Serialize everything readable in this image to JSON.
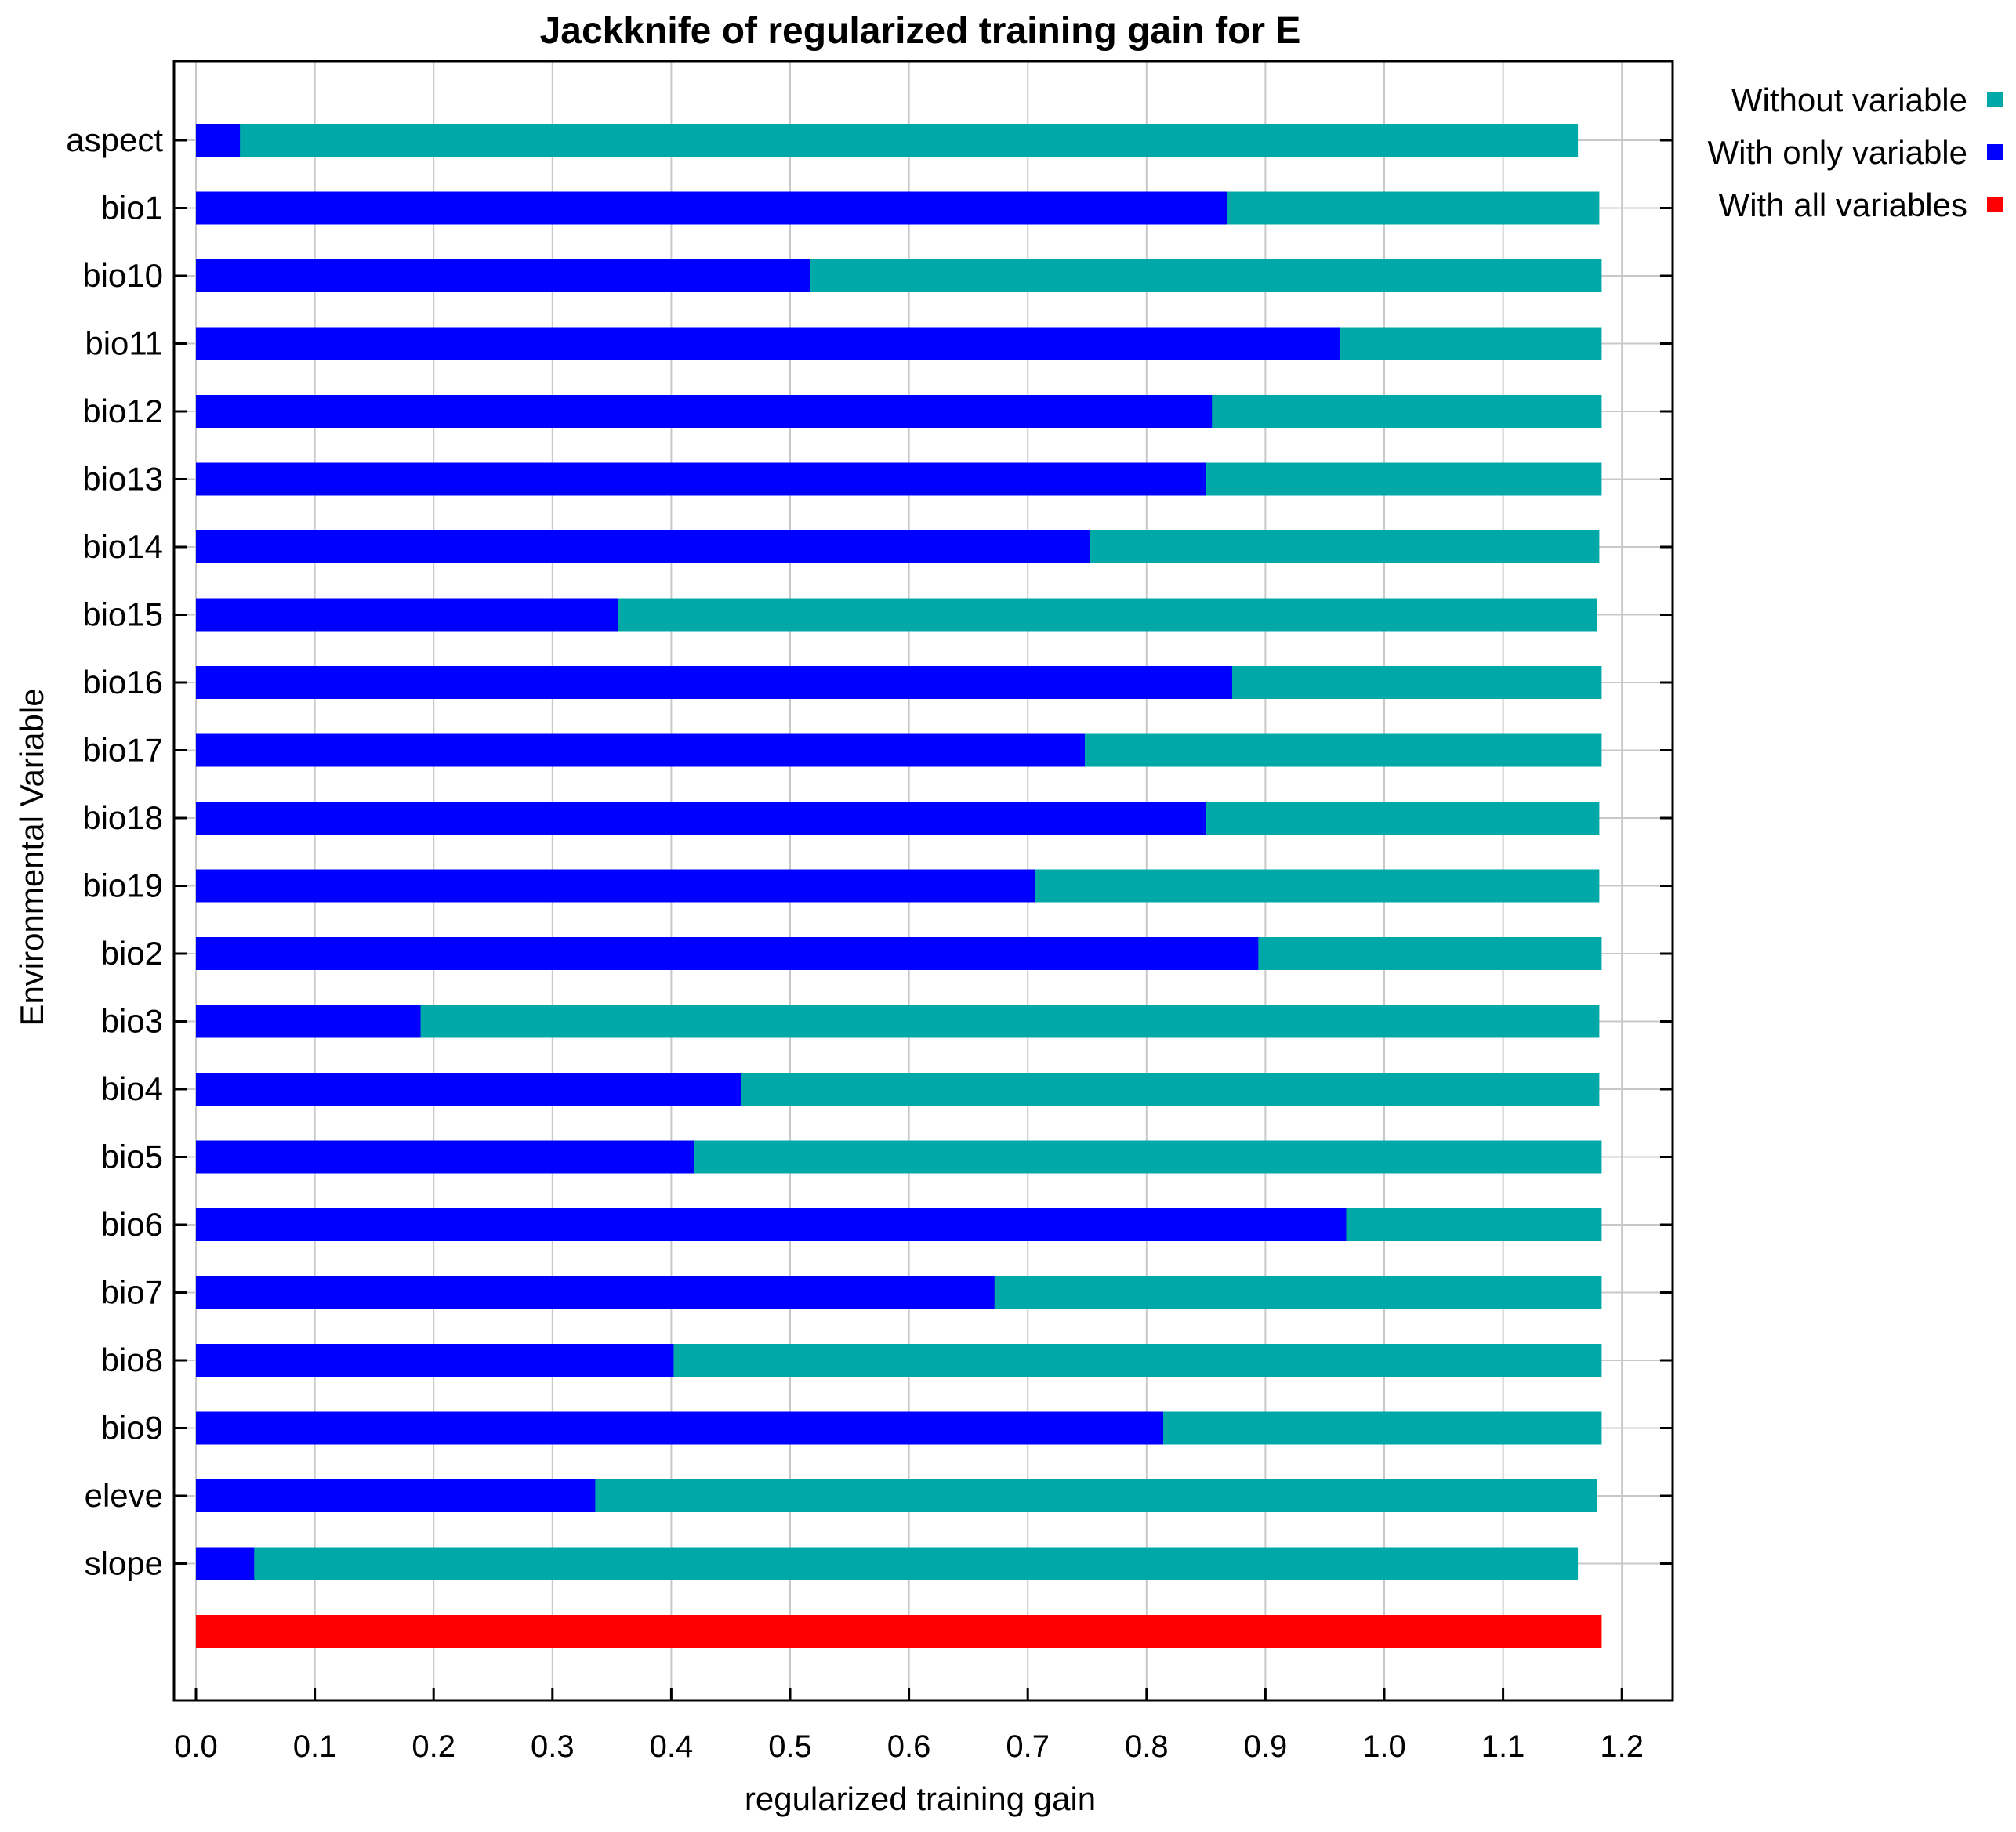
{
  "chart_data": {
    "type": "bar",
    "orientation": "horizontal",
    "title": "Jackknife of regularized training gain for E",
    "xlabel": "regularized training gain",
    "ylabel": "Environmental Variable",
    "xlim": [
      0.0,
      1.24
    ],
    "xticks": [
      "0.0",
      "0.1",
      "0.2",
      "0.3",
      "0.4",
      "0.5",
      "0.6",
      "0.7",
      "0.8",
      "0.9",
      "1.0",
      "1.1",
      "1.2"
    ],
    "grid": true,
    "legend_position": "top-right, outside plot",
    "categories": [
      "aspect",
      "bio1",
      "bio10",
      "bio11",
      "bio12",
      "bio13",
      "bio14",
      "bio15",
      "bio16",
      "bio17",
      "bio18",
      "bio19",
      "bio2",
      "bio3",
      "bio4",
      "bio5",
      "bio6",
      "bio7",
      "bio8",
      "bio9",
      "eleve",
      "slope"
    ],
    "series": [
      {
        "name": "Without variable",
        "color": "#00a8a8",
        "values": [
          1.163,
          1.181,
          1.183,
          1.183,
          1.183,
          1.183,
          1.181,
          1.179,
          1.183,
          1.183,
          1.181,
          1.181,
          1.183,
          1.181,
          1.181,
          1.183,
          1.183,
          1.183,
          1.183,
          1.183,
          1.179,
          1.163
        ]
      },
      {
        "name": "With only variable",
        "color": "#0000ff",
        "values": [
          0.037,
          0.868,
          0.517,
          0.963,
          0.855,
          0.85,
          0.752,
          0.355,
          0.872,
          0.748,
          0.85,
          0.706,
          0.894,
          0.189,
          0.459,
          0.419,
          0.968,
          0.672,
          0.402,
          0.814,
          0.336,
          0.049
        ]
      },
      {
        "name": "With all variables",
        "color": "#ff0000",
        "value": 1.183
      }
    ]
  }
}
